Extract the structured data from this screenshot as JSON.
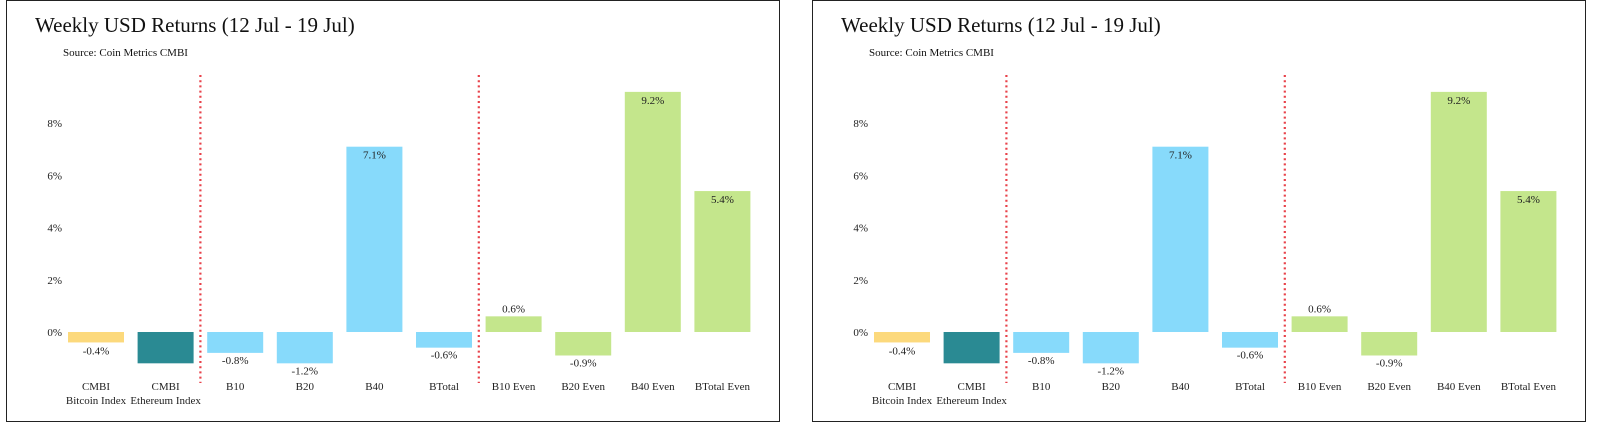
{
  "chart_data": [
    {
      "type": "bar",
      "title": "Weekly USD Returns (12 Jul - 19 Jul)",
      "subtitle": "Source: Coin Metrics CMBI",
      "categories": [
        [
          "CMBI",
          "Bitcoin Index"
        ],
        [
          "CMBI",
          "Ethereum Index"
        ],
        [
          "B10"
        ],
        [
          "B20"
        ],
        [
          "B40"
        ],
        [
          "BTotal"
        ],
        [
          "B10 Even"
        ],
        [
          "B20 Even"
        ],
        [
          "B40 Even"
        ],
        [
          "BTotal Even"
        ]
      ],
      "values": [
        -0.4,
        -1.2,
        -0.8,
        -1.2,
        7.1,
        -0.6,
        0.6,
        -0.9,
        9.2,
        5.4
      ],
      "data_labels": [
        "-0.4%",
        "-1.2%",
        "-0.8%",
        "-1.2%",
        "7.1%",
        "-0.6%",
        "0.6%",
        "-0.9%",
        "9.2%",
        "5.4%"
      ],
      "colors": [
        "#fcd97c",
        "#2a8a93",
        "#87dafb",
        "#87dafb",
        "#87dafb",
        "#87dafb",
        "#c4e68c",
        "#c4e68c",
        "#c4e68c",
        "#c4e68c"
      ],
      "yticks": [
        "0%",
        "2%",
        "4%",
        "6%",
        "8%"
      ],
      "ytick_values": [
        0,
        2,
        4,
        6,
        8
      ],
      "ylim": [
        -1.5,
        9.4
      ],
      "separators_after": [
        1,
        5
      ],
      "separator_color": "#e8424a",
      "xlabel": "",
      "ylabel": "",
      "grid": false
    },
    {
      "type": "bar",
      "title": "Weekly USD Returns (12 Jul - 19 Jul)",
      "subtitle": "Source: Coin Metrics CMBI",
      "categories": [
        [
          "CMBI",
          "Bitcoin Index"
        ],
        [
          "CMBI",
          "Ethereum Index"
        ],
        [
          "B10"
        ],
        [
          "B20"
        ],
        [
          "B40"
        ],
        [
          "BTotal"
        ],
        [
          "B10 Even"
        ],
        [
          "B20 Even"
        ],
        [
          "B40 Even"
        ],
        [
          "BTotal Even"
        ]
      ],
      "values": [
        -0.4,
        -1.2,
        -0.8,
        -1.2,
        7.1,
        -0.6,
        0.6,
        -0.9,
        9.2,
        5.4
      ],
      "data_labels": [
        "-0.4%",
        "-1.2%",
        "-0.8%",
        "-1.2%",
        "7.1%",
        "-0.6%",
        "0.6%",
        "-0.9%",
        "9.2%",
        "5.4%"
      ],
      "colors": [
        "#fcd97c",
        "#2a8a93",
        "#87dafb",
        "#87dafb",
        "#87dafb",
        "#87dafb",
        "#c4e68c",
        "#c4e68c",
        "#c4e68c",
        "#c4e68c"
      ],
      "yticks": [
        "0%",
        "2%",
        "4%",
        "6%",
        "8%"
      ],
      "ytick_values": [
        0,
        2,
        4,
        6,
        8
      ],
      "ylim": [
        -1.5,
        9.4
      ],
      "separators_after": [
        1,
        5
      ],
      "separator_color": "#e8424a",
      "xlabel": "",
      "ylabel": "",
      "grid": false
    }
  ]
}
